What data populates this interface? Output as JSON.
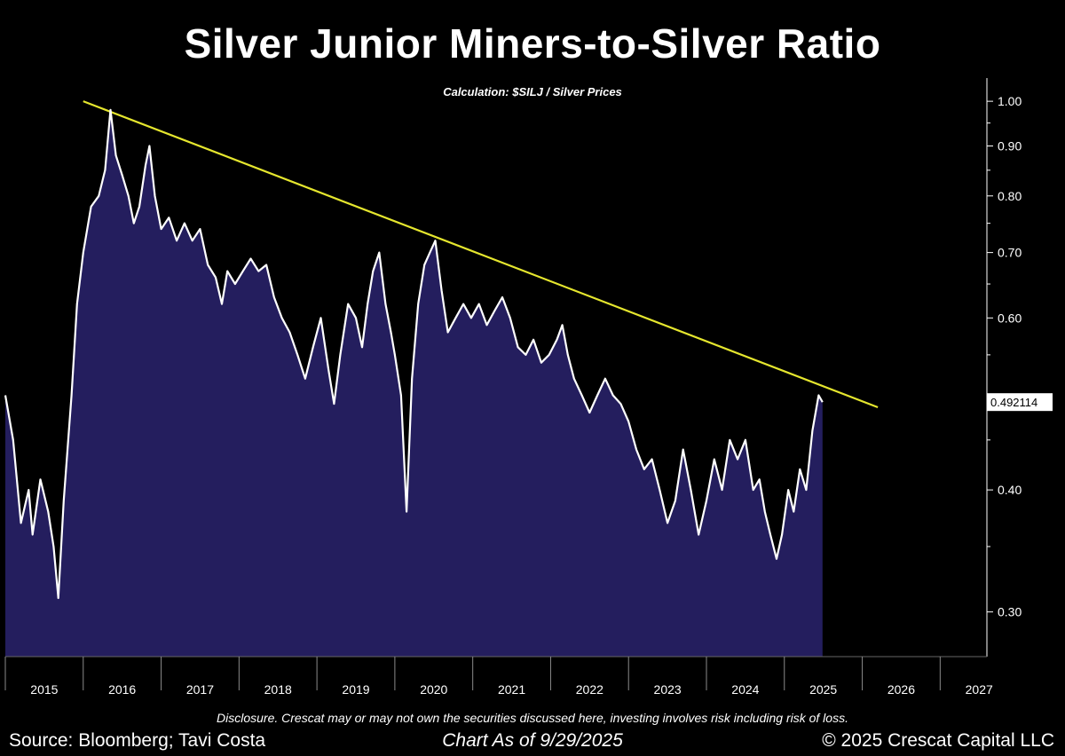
{
  "chart_data": {
    "type": "area",
    "title": "Silver Junior Miners-to-Silver Ratio",
    "subtitle": "Calculation: $SILJ / Silver Prices",
    "y_scale": "log",
    "ylim": [
      0.27,
      1.03
    ],
    "xlim": [
      2015.0,
      2027.6
    ],
    "yticks": [
      1.0,
      0.9,
      0.8,
      0.7,
      0.6,
      0.4,
      0.3
    ],
    "ytick_labels": [
      "1.00",
      "0.90",
      "0.80",
      "0.70",
      "0.60",
      "0.40",
      "0.30"
    ],
    "xticks": [
      2015,
      2016,
      2017,
      2018,
      2019,
      2020,
      2021,
      2022,
      2023,
      2024,
      2025,
      2026,
      2027
    ],
    "xtick_labels": [
      "2015",
      "2016",
      "2017",
      "2018",
      "2019",
      "2020",
      "2021",
      "2022",
      "2023",
      "2024",
      "2025",
      "2026",
      "2027"
    ],
    "last_value_label": "0.492114",
    "fill_color": "#241e5e",
    "line_color": "#ffffff",
    "trendline_color": "#e5e62e",
    "series": [
      {
        "values": [
          [
            2015.0,
            0.5
          ],
          [
            2015.1,
            0.45
          ],
          [
            2015.2,
            0.37
          ],
          [
            2015.3,
            0.4
          ],
          [
            2015.35,
            0.36
          ],
          [
            2015.45,
            0.41
          ],
          [
            2015.55,
            0.38
          ],
          [
            2015.62,
            0.35
          ],
          [
            2015.68,
            0.31
          ],
          [
            2015.75,
            0.39
          ],
          [
            2015.85,
            0.5
          ],
          [
            2015.92,
            0.62
          ],
          [
            2016.0,
            0.7
          ],
          [
            2016.1,
            0.78
          ],
          [
            2016.2,
            0.8
          ],
          [
            2016.28,
            0.85
          ],
          [
            2016.35,
            0.98
          ],
          [
            2016.42,
            0.88
          ],
          [
            2016.5,
            0.84
          ],
          [
            2016.58,
            0.8
          ],
          [
            2016.65,
            0.75
          ],
          [
            2016.72,
            0.78
          ],
          [
            2016.8,
            0.86
          ],
          [
            2016.85,
            0.9
          ],
          [
            2016.92,
            0.8
          ],
          [
            2017.0,
            0.74
          ],
          [
            2017.1,
            0.76
          ],
          [
            2017.2,
            0.72
          ],
          [
            2017.3,
            0.75
          ],
          [
            2017.4,
            0.72
          ],
          [
            2017.5,
            0.74
          ],
          [
            2017.6,
            0.68
          ],
          [
            2017.7,
            0.66
          ],
          [
            2017.78,
            0.62
          ],
          [
            2017.85,
            0.67
          ],
          [
            2017.95,
            0.65
          ],
          [
            2018.05,
            0.67
          ],
          [
            2018.15,
            0.69
          ],
          [
            2018.25,
            0.67
          ],
          [
            2018.35,
            0.68
          ],
          [
            2018.45,
            0.63
          ],
          [
            2018.55,
            0.6
          ],
          [
            2018.65,
            0.58
          ],
          [
            2018.75,
            0.55
          ],
          [
            2018.85,
            0.52
          ],
          [
            2018.95,
            0.56
          ],
          [
            2019.05,
            0.6
          ],
          [
            2019.15,
            0.53
          ],
          [
            2019.22,
            0.49
          ],
          [
            2019.3,
            0.55
          ],
          [
            2019.4,
            0.62
          ],
          [
            2019.5,
            0.6
          ],
          [
            2019.58,
            0.56
          ],
          [
            2019.65,
            0.62
          ],
          [
            2019.72,
            0.67
          ],
          [
            2019.8,
            0.7
          ],
          [
            2019.88,
            0.62
          ],
          [
            2019.95,
            0.58
          ],
          [
            2020.0,
            0.55
          ],
          [
            2020.08,
            0.5
          ],
          [
            2020.15,
            0.38
          ],
          [
            2020.22,
            0.52
          ],
          [
            2020.3,
            0.62
          ],
          [
            2020.38,
            0.68
          ],
          [
            2020.45,
            0.7
          ],
          [
            2020.52,
            0.72
          ],
          [
            2020.6,
            0.64
          ],
          [
            2020.68,
            0.58
          ],
          [
            2020.78,
            0.6
          ],
          [
            2020.88,
            0.62
          ],
          [
            2020.98,
            0.6
          ],
          [
            2021.08,
            0.62
          ],
          [
            2021.18,
            0.59
          ],
          [
            2021.28,
            0.61
          ],
          [
            2021.38,
            0.63
          ],
          [
            2021.48,
            0.6
          ],
          [
            2021.58,
            0.56
          ],
          [
            2021.68,
            0.55
          ],
          [
            2021.78,
            0.57
          ],
          [
            2021.88,
            0.54
          ],
          [
            2021.98,
            0.55
          ],
          [
            2022.08,
            0.57
          ],
          [
            2022.15,
            0.59
          ],
          [
            2022.22,
            0.55
          ],
          [
            2022.3,
            0.52
          ],
          [
            2022.4,
            0.5
          ],
          [
            2022.5,
            0.48
          ],
          [
            2022.6,
            0.5
          ],
          [
            2022.7,
            0.52
          ],
          [
            2022.8,
            0.5
          ],
          [
            2022.9,
            0.49
          ],
          [
            2023.0,
            0.47
          ],
          [
            2023.1,
            0.44
          ],
          [
            2023.2,
            0.42
          ],
          [
            2023.3,
            0.43
          ],
          [
            2023.4,
            0.4
          ],
          [
            2023.5,
            0.37
          ],
          [
            2023.6,
            0.39
          ],
          [
            2023.7,
            0.44
          ],
          [
            2023.8,
            0.4
          ],
          [
            2023.9,
            0.36
          ],
          [
            2024.0,
            0.39
          ],
          [
            2024.1,
            0.43
          ],
          [
            2024.2,
            0.4
          ],
          [
            2024.3,
            0.45
          ],
          [
            2024.4,
            0.43
          ],
          [
            2024.5,
            0.45
          ],
          [
            2024.6,
            0.4
          ],
          [
            2024.68,
            0.41
          ],
          [
            2024.75,
            0.38
          ],
          [
            2024.82,
            0.36
          ],
          [
            2024.9,
            0.34
          ],
          [
            2024.97,
            0.36
          ],
          [
            2025.05,
            0.4
          ],
          [
            2025.12,
            0.38
          ],
          [
            2025.2,
            0.42
          ],
          [
            2025.28,
            0.4
          ],
          [
            2025.36,
            0.46
          ],
          [
            2025.44,
            0.5
          ],
          [
            2025.49,
            0.492
          ]
        ]
      }
    ],
    "trendline": [
      [
        2016.0,
        1.0
      ],
      [
        2026.2,
        0.486
      ]
    ]
  },
  "footer": {
    "disclosure": "Disclosure. Crescat may or may not own the securities discussed here, investing involves risk including risk of loss.",
    "source": "Source: Bloomberg; Tavi Costa",
    "as_of": "Chart As of 9/29/2025",
    "copyright": "© 2025 Crescat Capital LLC"
  }
}
